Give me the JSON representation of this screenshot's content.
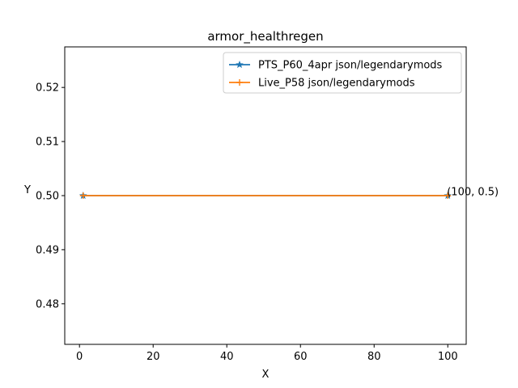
{
  "chart_data": {
    "type": "line",
    "title": "armor_healthregen",
    "xlabel": "X",
    "ylabel": "Y",
    "xlim": [
      -4,
      105
    ],
    "ylim": [
      0.4725,
      0.5275
    ],
    "xticks": [
      0,
      20,
      40,
      60,
      80,
      100
    ],
    "yticks": [
      0.48,
      0.49,
      0.5,
      0.51,
      0.52
    ],
    "xtick_labels": [
      "0",
      "20",
      "40",
      "60",
      "80",
      "100"
    ],
    "ytick_labels": [
      "0.48",
      "0.49",
      "0.50",
      "0.51",
      "0.52"
    ],
    "grid": false,
    "legend_position": "top-right",
    "series": [
      {
        "name": "PTS_P60_4apr json/legendarymods",
        "x": [
          1,
          100
        ],
        "y": [
          0.5,
          0.5
        ],
        "color": "#1f77b4",
        "marker": "star"
      },
      {
        "name": "Live_P58 json/legendarymods",
        "x": [
          1,
          100
        ],
        "y": [
          0.5,
          0.5
        ],
        "color": "#ff7f0e",
        "marker": "plus"
      }
    ],
    "annotations": [
      {
        "text": "(100, 0.5)",
        "x": 100,
        "y": 0.5
      }
    ]
  }
}
